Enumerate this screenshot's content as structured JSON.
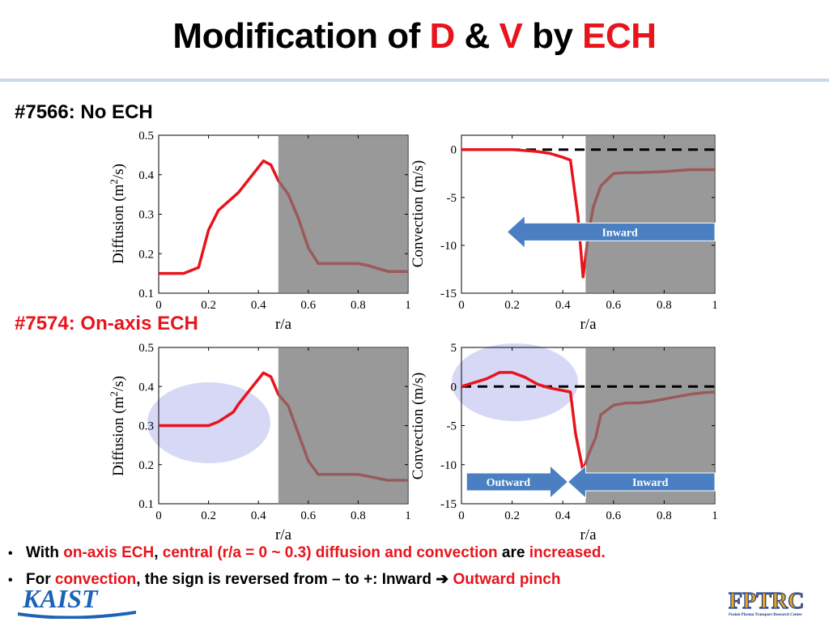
{
  "slide": {
    "title_parts": {
      "a": "Modification of ",
      "b": "D",
      "c": " & ",
      "d": "V",
      "e": " by ",
      "f": "ECH"
    },
    "section_no_ech": "#7566: No ECH",
    "section_on_axis": "#7574: On-axis ECH",
    "bullet1": {
      "a": "With ",
      "b": "on-axis ECH",
      "c": ", ",
      "d": "central (r/a = 0 ~ 0.3) diffusion and convection",
      "e": " are ",
      "f": "increased."
    },
    "bullet2": {
      "a": "For ",
      "b": "convection",
      "c": ", the sign is reversed from – to +: Inward ",
      "d": "Outward pinch"
    },
    "logo_left": "KAIST",
    "logo_right": "FPTRC",
    "logo_right_sub": "Fusion Plasma Transport Research Center"
  },
  "colors": {
    "accent_red": "#e8141c",
    "profile_line": "#e8141c",
    "profile_line_shaded": "#9b5a5a",
    "shaded_region": "#999999",
    "arrow_fill": "#4a7fc1",
    "highlight_ellipse": "#c9cbf2",
    "title_rule": "#c9d6ec"
  },
  "chart_data": [
    {
      "type": "line",
      "ylabel": "Diffusion (m2/s)",
      "xlabel": "r/a",
      "xlim": [
        0,
        1
      ],
      "ylim": [
        0.1,
        0.5
      ],
      "xticks": [
        "0",
        "0.2",
        "0.4",
        "0.6",
        "0.8",
        "1"
      ],
      "yticks": [
        "0.1",
        "0.2",
        "0.3",
        "0.4",
        "0.5"
      ],
      "shaded_from": 0.48,
      "x": [
        0,
        0.1,
        0.16,
        0.2,
        0.24,
        0.32,
        0.37,
        0.42,
        0.45,
        0.48,
        0.52,
        0.56,
        0.6,
        0.64,
        0.72,
        0.8,
        0.84,
        0.92,
        1.0
      ],
      "y": [
        0.15,
        0.15,
        0.165,
        0.26,
        0.31,
        0.355,
        0.395,
        0.435,
        0.425,
        0.385,
        0.35,
        0.29,
        0.215,
        0.175,
        0.175,
        0.175,
        0.17,
        0.155,
        0.155
      ],
      "annotations": []
    },
    {
      "type": "line",
      "ylabel": "Convection (m/s)",
      "xlabel": "r/a",
      "xlim": [
        0,
        1
      ],
      "ylim": [
        -15,
        1.5
      ],
      "xticks": [
        "0",
        "0.2",
        "0.4",
        "0.6",
        "0.8",
        "1"
      ],
      "yticks": [
        "0",
        "-5",
        "-10",
        "-15"
      ],
      "yticks_values": [
        0,
        -5,
        -10,
        -15
      ],
      "shaded_from": 0.49,
      "zero_line": true,
      "x": [
        0,
        0.1,
        0.2,
        0.25,
        0.3,
        0.35,
        0.4,
        0.43,
        0.46,
        0.48,
        0.5,
        0.52,
        0.55,
        0.6,
        0.65,
        0.7,
        0.8,
        0.9,
        1.0
      ],
      "y": [
        0,
        0,
        0,
        -0.1,
        -0.2,
        -0.4,
        -0.8,
        -1.1,
        -7,
        -13.3,
        -9,
        -6,
        -3.8,
        -2.5,
        -2.4,
        -2.4,
        -2.3,
        -2.1,
        -2.1
      ],
      "annotations": [
        {
          "text": "Inward",
          "direction": "left",
          "x1": 0.18,
          "x2": 1.0,
          "y": -8.6
        }
      ]
    },
    {
      "type": "line",
      "ylabel": "Diffusion (m2/s)",
      "xlabel": "r/a",
      "xlim": [
        0,
        1
      ],
      "ylim": [
        0.1,
        0.5
      ],
      "xticks": [
        "0",
        "0.2",
        "0.4",
        "0.6",
        "0.8",
        "1"
      ],
      "yticks": [
        "0.1",
        "0.2",
        "0.3",
        "0.4",
        "0.5"
      ],
      "shaded_from": 0.48,
      "x": [
        0,
        0.1,
        0.2,
        0.24,
        0.3,
        0.32,
        0.37,
        0.42,
        0.45,
        0.48,
        0.52,
        0.56,
        0.6,
        0.64,
        0.72,
        0.8,
        0.84,
        0.92,
        1.0
      ],
      "y": [
        0.3,
        0.3,
        0.3,
        0.31,
        0.335,
        0.355,
        0.395,
        0.435,
        0.425,
        0.38,
        0.35,
        0.28,
        0.21,
        0.175,
        0.175,
        0.175,
        0.17,
        0.16,
        0.16
      ],
      "annotations": []
    },
    {
      "type": "line",
      "ylabel": "Convection (m/s)",
      "xlabel": "r/a",
      "xlim": [
        0,
        1
      ],
      "ylim": [
        -15,
        5
      ],
      "xticks": [
        "0",
        "0.2",
        "0.4",
        "0.6",
        "0.8",
        "1"
      ],
      "yticks": [
        "5",
        "0",
        "-5",
        "-10",
        "-15"
      ],
      "yticks_values": [
        5,
        0,
        -5,
        -10,
        -15
      ],
      "shaded_from": 0.49,
      "zero_line": true,
      "x": [
        0,
        0.05,
        0.1,
        0.15,
        0.2,
        0.25,
        0.3,
        0.35,
        0.4,
        0.43,
        0.45,
        0.48,
        0.5,
        0.53,
        0.55,
        0.6,
        0.65,
        0.7,
        0.75,
        0.8,
        0.85,
        0.9,
        0.95,
        1.0
      ],
      "y": [
        0,
        0.5,
        1.0,
        1.8,
        1.8,
        1.2,
        0.3,
        -0.2,
        -0.5,
        -0.7,
        -6,
        -10.8,
        -8.8,
        -6.5,
        -3.6,
        -2.4,
        -2.1,
        -2.1,
        -1.9,
        -1.6,
        -1.3,
        -1.0,
        -0.8,
        -0.7
      ],
      "annotations": [
        {
          "text": "Outward",
          "direction": "right",
          "x1": 0.02,
          "x2": 0.42,
          "y": -12.2
        },
        {
          "text": "Inward",
          "direction": "left",
          "x1": 0.42,
          "x2": 1.0,
          "y": -12.2
        }
      ]
    }
  ]
}
